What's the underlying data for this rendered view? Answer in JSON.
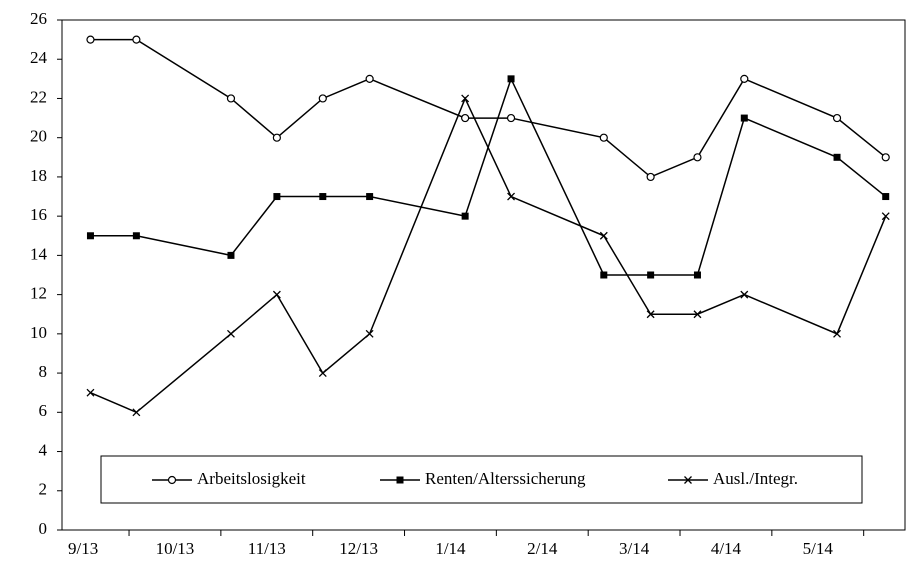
{
  "chart_data": {
    "type": "line",
    "x": [
      0.58,
      1.08,
      2.11,
      2.61,
      3.11,
      3.62,
      4.66,
      5.16,
      6.17,
      6.68,
      7.19,
      7.7,
      8.71,
      9.24
    ],
    "series": [
      {
        "name": "Arbeitslosigkeit",
        "color": "#000000",
        "marker": "circle",
        "values": [
          25,
          25,
          22,
          20,
          22,
          23,
          21,
          21,
          20,
          18,
          19,
          23,
          21,
          19
        ]
      },
      {
        "name": "Renten/Alterssicherung",
        "color": "#000000",
        "marker": "square",
        "values": [
          15,
          15,
          14,
          17,
          17,
          17,
          16,
          23,
          13,
          13,
          13,
          21,
          19,
          17
        ]
      },
      {
        "name": "Ausl./Integr.",
        "color": "#000000",
        "marker": "cross",
        "values": [
          7,
          6,
          10,
          12,
          8,
          10,
          22,
          17,
          15,
          11,
          11,
          12,
          10,
          16
        ]
      }
    ],
    "xlim": [
      0.27,
      9.45
    ],
    "xticks": [
      {
        "value": 0.5,
        "label": "9/13"
      },
      {
        "value": 1.5,
        "label": "10/13"
      },
      {
        "value": 2.5,
        "label": "11/13"
      },
      {
        "value": 3.5,
        "label": "12/13"
      },
      {
        "value": 4.5,
        "label": "1/14"
      },
      {
        "value": 5.5,
        "label": "2/14"
      },
      {
        "value": 6.5,
        "label": "3/14"
      },
      {
        "value": 7.5,
        "label": "4/14"
      },
      {
        "value": 8.5,
        "label": "5/14"
      }
    ],
    "ylim": [
      0,
      26
    ],
    "yticks": [
      0,
      2,
      4,
      6,
      8,
      10,
      12,
      14,
      16,
      18,
      20,
      22,
      24,
      26
    ],
    "legend": "bottom"
  }
}
